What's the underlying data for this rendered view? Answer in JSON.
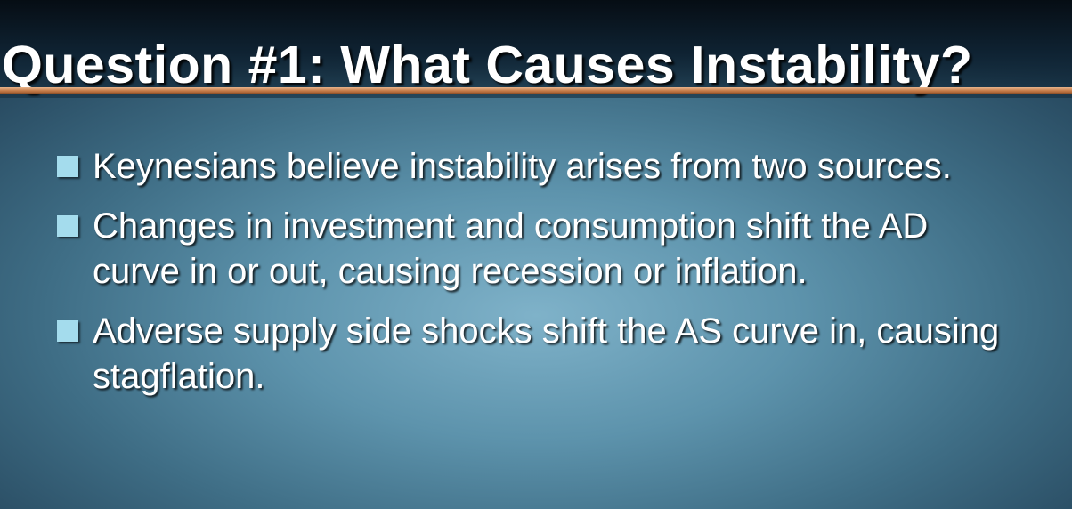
{
  "slide": {
    "title": "Question #1: What Causes Instability?",
    "bullets": [
      "Keynesians believe instability arises from two sources.",
      "Changes in investment and consumption shift the AD curve in or out, causing recession or inflation.",
      "Adverse supply side shocks shift the AS curve in, causing stagflation."
    ]
  },
  "colors": {
    "background_center": "#7fb2c9",
    "background_edge": "#24445a",
    "title_rule": "#c47a47",
    "bullet_marker": "#a4dced",
    "text": "#ffffff"
  }
}
